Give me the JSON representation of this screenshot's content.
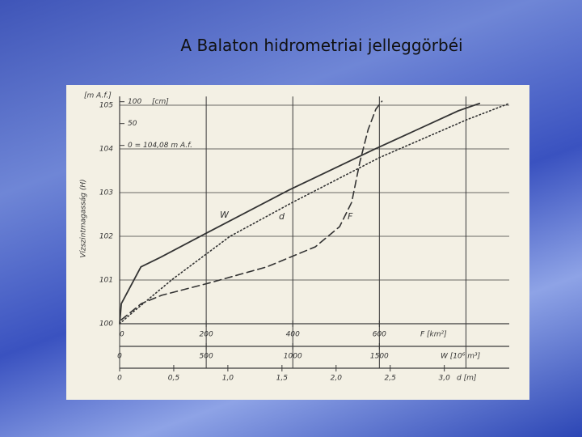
{
  "chart_data": {
    "type": "line",
    "title": "A Balaton hidrometriai jelleggörbéi",
    "y_unit": "[m A.f.]",
    "y_label": "Vízszintmagasság (H)",
    "ylim": [
      100,
      105.2
    ],
    "yticks": [
      100,
      101,
      102,
      103,
      104,
      105
    ],
    "grid": true,
    "cm_scale": {
      "unit": "[cm]",
      "zero": 104.08,
      "ticks": [
        {
          "value": 0,
          "label": "0 = 104,08 m A.f."
        },
        50,
        100
      ]
    },
    "x_axes": [
      {
        "id": "F",
        "label": "F [km²]",
        "xlim": [
          0,
          900
        ],
        "xticks": [
          0,
          200,
          400,
          600
        ]
      },
      {
        "id": "W",
        "label": "W [10⁶ m³]",
        "xlim": [
          0,
          2250
        ],
        "xticks": [
          0,
          500,
          1000,
          1500
        ]
      },
      {
        "id": "d",
        "label": "d [m]",
        "xlim": [
          0,
          3.6
        ],
        "xticks": [
          0,
          {
            "value": 0.5,
            "label": "0,5"
          },
          {
            "value": 1,
            "label": "1,0"
          },
          {
            "value": 1.5,
            "label": "1,5"
          },
          {
            "value": 2,
            "label": "2,0"
          },
          {
            "value": 2.5,
            "label": "2,5"
          },
          {
            "value": 3,
            "label": "3,0"
          }
        ]
      }
    ],
    "grid_x": [
      0,
      200,
      400,
      600,
      800
    ],
    "series": [
      {
        "name": "W",
        "axis": "W",
        "dash": "solid",
        "color": "#333333",
        "x": [
          0,
          10,
          123,
          236,
          500,
          978,
          1465,
          1955,
          2078
        ],
        "values": [
          100,
          100.46,
          101.3,
          101.52,
          102.07,
          103.06,
          103.98,
          104.87,
          105.04
        ]
      },
      {
        "name": "d",
        "axis": "d",
        "dash": "dotted",
        "color": "#333333",
        "x": [
          0,
          0.13,
          0.49,
          1.02,
          1.6,
          2.4,
          3.21,
          3.6
        ],
        "values": [
          100,
          100.28,
          101.02,
          102,
          102.78,
          103.8,
          104.67,
          105.04
        ]
      },
      {
        "name": "F",
        "axis": "F",
        "dash": "dashed",
        "color": "#333333",
        "x": [
          4,
          50,
          97,
          206,
          340,
          452,
          508,
          536,
          555,
          574,
          592,
          606
        ],
        "values": [
          100.09,
          100.46,
          100.65,
          100.93,
          101.3,
          101.76,
          102.22,
          102.78,
          103.7,
          104.44,
          104.91,
          105.09
        ]
      }
    ]
  }
}
